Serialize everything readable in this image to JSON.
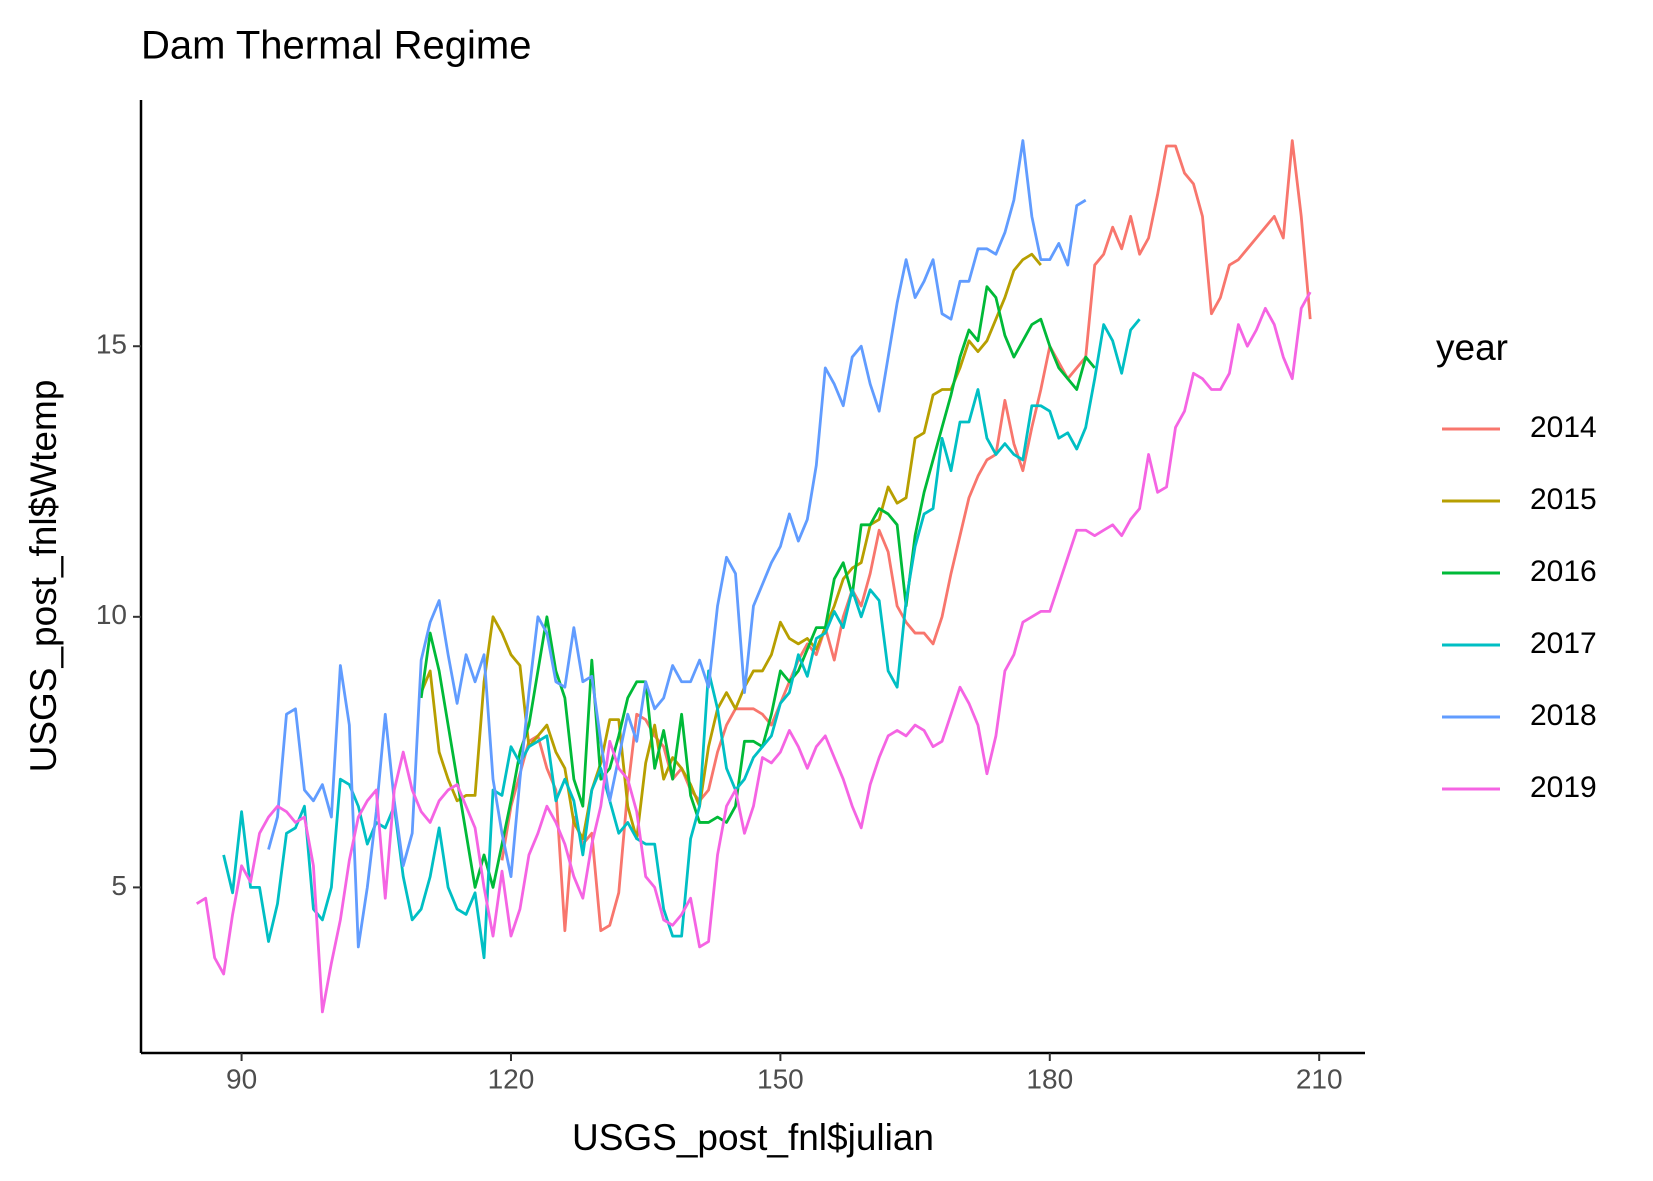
{
  "chart_data": {
    "type": "line",
    "title": "Dam Thermal Regime",
    "x_label": "USGS_post_fnl$julian",
    "y_label": "USGS_post_fnl$Wtemp",
    "legend_title": "year",
    "legend_position": "right",
    "grid": false,
    "xlim": [
      78.8,
      215.1
    ],
    "ylim": [
      1.94,
      19.55
    ],
    "xticks": [
      90,
      120,
      150,
      180,
      210
    ],
    "yticks": [
      5,
      10,
      15
    ],
    "series": [
      {
        "name": "2014",
        "color": "#F8766D",
        "x": [
          119,
          120,
          121,
          122,
          123,
          124,
          125,
          126,
          127,
          128,
          129,
          130,
          131,
          132,
          133,
          134,
          135,
          136,
          137,
          138,
          139,
          140,
          141,
          142,
          143,
          144,
          145,
          146,
          147,
          148,
          149,
          150,
          151,
          152,
          153,
          154,
          155,
          156,
          157,
          158,
          159,
          160,
          161,
          162,
          163,
          164,
          165,
          166,
          167,
          168,
          169,
          170,
          171,
          172,
          173,
          174,
          175,
          176,
          177,
          178,
          179,
          180,
          181,
          182,
          183,
          184,
          185,
          186,
          187,
          188,
          189,
          190,
          191,
          192,
          193,
          194,
          195,
          196,
          197,
          198,
          199,
          200,
          201,
          202,
          203,
          204,
          205,
          206,
          207,
          208,
          209
        ],
        "values": [
          5.5,
          6.5,
          7.1,
          7.7,
          7.8,
          7.2,
          6.8,
          4.2,
          6.3,
          5.8,
          6.0,
          4.2,
          4.3,
          4.9,
          6.8,
          8.2,
          8.1,
          7.8,
          7.6,
          7.0,
          7.2,
          6.8,
          6.6,
          6.8,
          7.5,
          8.0,
          8.3,
          8.3,
          8.3,
          8.2,
          8.0,
          8.4,
          8.8,
          9.2,
          9.5,
          9.3,
          9.8,
          9.2,
          10.0,
          10.5,
          10.2,
          10.8,
          11.6,
          11.2,
          10.2,
          9.9,
          9.7,
          9.7,
          9.5,
          10.0,
          10.8,
          11.5,
          12.2,
          12.6,
          12.9,
          13.0,
          14.0,
          13.2,
          12.7,
          13.5,
          14.2,
          15.0,
          14.7,
          14.4,
          14.6,
          14.8,
          16.5,
          16.7,
          17.2,
          16.8,
          17.4,
          16.7,
          17.0,
          17.8,
          18.7,
          18.7,
          18.2,
          18.0,
          17.4,
          15.6,
          15.9,
          16.5,
          16.6,
          16.8,
          17.0,
          17.2,
          17.4,
          17.0,
          18.8,
          17.4,
          15.5
        ]
      },
      {
        "name": "2015",
        "color": "#B79F00",
        "x": [
          110,
          111,
          112,
          113,
          114,
          115,
          116,
          117,
          118,
          119,
          120,
          121,
          122,
          123,
          124,
          125,
          126,
          127,
          128,
          129,
          130,
          131,
          132,
          133,
          134,
          135,
          136,
          137,
          138,
          139,
          140,
          141,
          142,
          143,
          144,
          145,
          146,
          147,
          148,
          149,
          150,
          151,
          152,
          153,
          154,
          155,
          156,
          157,
          158,
          159,
          160,
          161,
          162,
          163,
          164,
          165,
          166,
          167,
          168,
          169,
          170,
          171,
          172,
          173,
          174,
          175,
          176,
          177,
          178,
          179
        ],
        "values": [
          8.6,
          9.0,
          7.5,
          7.0,
          6.6,
          6.7,
          6.7,
          8.8,
          10.0,
          9.7,
          9.3,
          9.1,
          7.6,
          7.8,
          8.0,
          7.5,
          7.2,
          6.2,
          5.9,
          6.8,
          7.3,
          8.1,
          8.1,
          6.5,
          5.9,
          7.3,
          8.0,
          7.0,
          7.4,
          7.2,
          6.9,
          6.5,
          7.6,
          8.3,
          8.6,
          8.3,
          8.7,
          9.0,
          9.0,
          9.3,
          9.9,
          9.6,
          9.5,
          9.6,
          9.4,
          9.8,
          10.2,
          10.7,
          10.9,
          11.0,
          11.7,
          11.8,
          12.4,
          12.1,
          12.2,
          13.3,
          13.4,
          14.1,
          14.2,
          14.2,
          14.6,
          15.1,
          14.9,
          15.1,
          15.5,
          15.9,
          16.4,
          16.6,
          16.7,
          16.5
        ]
      },
      {
        "name": "2016",
        "color": "#00BA38",
        "x": [
          110,
          111,
          112,
          113,
          114,
          115,
          116,
          117,
          118,
          119,
          120,
          121,
          122,
          123,
          124,
          125,
          126,
          127,
          128,
          129,
          130,
          131,
          132,
          133,
          134,
          135,
          136,
          137,
          138,
          139,
          140,
          141,
          142,
          143,
          144,
          145,
          146,
          147,
          148,
          149,
          150,
          151,
          152,
          153,
          154,
          155,
          156,
          157,
          158,
          159,
          160,
          161,
          162,
          163,
          164,
          165,
          166,
          167,
          168,
          169,
          170,
          171,
          172,
          173,
          174,
          175,
          176,
          177,
          178,
          179,
          180,
          181,
          182,
          183,
          184,
          185
        ],
        "values": [
          8.5,
          9.7,
          9.0,
          8.0,
          7.0,
          6.0,
          5.0,
          5.6,
          5.0,
          5.8,
          6.6,
          7.5,
          8.0,
          9.0,
          10.0,
          9.0,
          8.5,
          7.0,
          6.5,
          9.2,
          7.0,
          7.2,
          7.8,
          8.5,
          8.8,
          8.8,
          7.2,
          7.9,
          7.0,
          8.2,
          6.7,
          6.2,
          6.2,
          6.3,
          6.2,
          6.5,
          7.7,
          7.7,
          7.6,
          8.2,
          9.0,
          8.8,
          9.0,
          9.4,
          9.8,
          9.8,
          10.7,
          11.0,
          10.4,
          11.7,
          11.7,
          12.0,
          11.9,
          11.7,
          10.2,
          11.5,
          12.3,
          12.9,
          13.5,
          14.1,
          14.8,
          15.3,
          15.1,
          16.1,
          15.9,
          15.2,
          14.8,
          15.1,
          15.4,
          15.5,
          15.0,
          14.6,
          14.4,
          14.2,
          14.8,
          14.6
        ]
      },
      {
        "name": "2017",
        "color": "#00BFC4",
        "x": [
          88,
          89,
          90,
          91,
          92,
          93,
          94,
          95,
          96,
          97,
          98,
          99,
          100,
          101,
          102,
          103,
          104,
          105,
          106,
          107,
          108,
          109,
          110,
          111,
          112,
          113,
          114,
          115,
          116,
          117,
          118,
          119,
          120,
          121,
          122,
          123,
          124,
          125,
          126,
          127,
          128,
          129,
          130,
          131,
          132,
          133,
          134,
          135,
          136,
          137,
          138,
          139,
          140,
          141,
          142,
          143,
          144,
          145,
          146,
          147,
          148,
          149,
          150,
          151,
          152,
          153,
          154,
          155,
          156,
          157,
          158,
          159,
          160,
          161,
          162,
          163,
          164,
          165,
          166,
          167,
          168,
          169,
          170,
          171,
          172,
          173,
          174,
          175,
          176,
          177,
          178,
          179,
          180,
          181,
          182,
          183,
          184,
          185,
          186,
          187,
          188,
          189,
          190
        ],
        "values": [
          5.6,
          4.9,
          6.4,
          5.0,
          5.0,
          4.0,
          4.7,
          6.0,
          6.1,
          6.5,
          4.6,
          4.4,
          5.0,
          7.0,
          6.9,
          6.5,
          5.8,
          6.2,
          6.1,
          6.5,
          5.2,
          4.4,
          4.6,
          5.2,
          6.1,
          5.0,
          4.6,
          4.5,
          4.9,
          3.7,
          6.8,
          6.7,
          7.6,
          7.3,
          7.6,
          7.7,
          7.8,
          6.6,
          7.0,
          6.6,
          5.6,
          6.8,
          7.2,
          6.6,
          6.0,
          6.2,
          5.9,
          5.8,
          5.8,
          4.6,
          4.1,
          4.1,
          5.9,
          6.5,
          9.0,
          8.3,
          7.2,
          6.8,
          7.0,
          7.4,
          7.6,
          7.8,
          8.4,
          8.6,
          9.3,
          8.9,
          9.6,
          9.7,
          10.1,
          9.8,
          10.5,
          10.0,
          10.5,
          10.3,
          9.0,
          8.7,
          10.3,
          11.3,
          11.9,
          12.0,
          13.3,
          12.7,
          13.6,
          13.6,
          14.2,
          13.3,
          13.0,
          13.2,
          13.0,
          12.9,
          13.9,
          13.9,
          13.8,
          13.3,
          13.4,
          13.1,
          13.5,
          14.4,
          15.4,
          15.1,
          14.5,
          15.3,
          15.5
        ]
      },
      {
        "name": "2018",
        "color": "#619CFF",
        "x": [
          93,
          94,
          95,
          96,
          97,
          98,
          99,
          100,
          101,
          102,
          103,
          104,
          105,
          106,
          107,
          108,
          109,
          110,
          111,
          112,
          113,
          114,
          115,
          116,
          117,
          118,
          119,
          120,
          121,
          122,
          123,
          124,
          125,
          126,
          127,
          128,
          129,
          130,
          131,
          132,
          133,
          134,
          135,
          136,
          137,
          138,
          139,
          140,
          141,
          142,
          143,
          144,
          145,
          146,
          147,
          148,
          149,
          150,
          151,
          152,
          153,
          154,
          155,
          156,
          157,
          158,
          159,
          160,
          161,
          162,
          163,
          164,
          165,
          166,
          167,
          168,
          169,
          170,
          171,
          172,
          173,
          174,
          175,
          176,
          177,
          178,
          179,
          180,
          181,
          182,
          183,
          184
        ],
        "values": [
          5.7,
          6.3,
          8.2,
          8.3,
          6.8,
          6.6,
          6.9,
          6.3,
          9.1,
          8.0,
          3.9,
          5.0,
          6.4,
          8.2,
          6.6,
          5.4,
          6.0,
          9.2,
          9.9,
          10.3,
          9.3,
          8.4,
          9.3,
          8.8,
          9.3,
          7.0,
          6.0,
          5.2,
          7.0,
          8.6,
          10.0,
          9.7,
          8.8,
          8.7,
          9.8,
          8.8,
          8.9,
          7.7,
          6.6,
          7.4,
          8.2,
          7.7,
          8.8,
          8.3,
          8.5,
          9.1,
          8.8,
          8.8,
          9.2,
          8.7,
          10.2,
          11.1,
          10.8,
          8.6,
          10.2,
          10.6,
          11.0,
          11.3,
          11.9,
          11.4,
          11.8,
          12.8,
          14.6,
          14.3,
          13.9,
          14.8,
          15.0,
          14.3,
          13.8,
          14.8,
          15.8,
          16.6,
          15.9,
          16.2,
          16.6,
          15.6,
          15.5,
          16.2,
          16.2,
          16.8,
          16.8,
          16.7,
          17.1,
          17.7,
          18.8,
          17.4,
          16.6,
          16.6,
          16.9,
          16.5,
          17.6,
          17.7
        ]
      },
      {
        "name": "2019",
        "color": "#F564E3",
        "x": [
          85,
          86,
          87,
          88,
          89,
          90,
          91,
          92,
          93,
          94,
          95,
          96,
          97,
          98,
          99,
          100,
          101,
          102,
          103,
          104,
          105,
          106,
          107,
          108,
          109,
          110,
          111,
          112,
          113,
          114,
          115,
          116,
          117,
          118,
          119,
          120,
          121,
          122,
          123,
          124,
          125,
          126,
          127,
          128,
          129,
          130,
          131,
          132,
          133,
          134,
          135,
          136,
          137,
          138,
          139,
          140,
          141,
          142,
          143,
          144,
          145,
          146,
          147,
          148,
          149,
          150,
          151,
          152,
          153,
          154,
          155,
          156,
          157,
          158,
          159,
          160,
          161,
          162,
          163,
          164,
          165,
          166,
          167,
          168,
          169,
          170,
          171,
          172,
          173,
          174,
          175,
          176,
          177,
          178,
          179,
          180,
          181,
          182,
          183,
          184,
          185,
          186,
          187,
          188,
          189,
          190,
          191,
          192,
          193,
          194,
          195,
          196,
          197,
          198,
          199,
          200,
          201,
          202,
          203,
          204,
          205,
          206,
          207,
          208,
          209
        ],
        "values": [
          4.7,
          4.8,
          3.7,
          3.4,
          4.5,
          5.4,
          5.1,
          6.0,
          6.3,
          6.5,
          6.4,
          6.2,
          6.3,
          5.4,
          2.7,
          3.6,
          4.4,
          5.5,
          6.3,
          6.6,
          6.8,
          4.8,
          6.8,
          7.5,
          6.8,
          6.4,
          6.2,
          6.6,
          6.8,
          6.9,
          6.5,
          6.1,
          5.0,
          4.1,
          5.3,
          4.1,
          4.6,
          5.6,
          6.0,
          6.5,
          6.2,
          5.8,
          5.2,
          4.8,
          5.8,
          6.5,
          7.7,
          7.2,
          7.0,
          6.4,
          5.2,
          5.0,
          4.4,
          4.3,
          4.5,
          4.8,
          3.9,
          4.0,
          5.6,
          6.5,
          6.8,
          6.0,
          6.5,
          7.4,
          7.3,
          7.5,
          7.9,
          7.6,
          7.2,
          7.6,
          7.8,
          7.4,
          7.0,
          6.5,
          6.1,
          6.9,
          7.4,
          7.8,
          7.9,
          7.8,
          8.0,
          7.9,
          7.6,
          7.7,
          8.2,
          8.7,
          8.4,
          8.0,
          7.1,
          7.8,
          9.0,
          9.3,
          9.9,
          10.0,
          10.1,
          10.1,
          10.6,
          11.1,
          11.6,
          11.6,
          11.5,
          11.6,
          11.7,
          11.5,
          11.8,
          12.0,
          13.0,
          12.3,
          12.4,
          13.5,
          13.8,
          14.5,
          14.4,
          14.2,
          14.2,
          14.5,
          15.4,
          15.0,
          15.3,
          15.7,
          15.4,
          14.8,
          14.4,
          15.7,
          16.0
        ]
      }
    ]
  }
}
